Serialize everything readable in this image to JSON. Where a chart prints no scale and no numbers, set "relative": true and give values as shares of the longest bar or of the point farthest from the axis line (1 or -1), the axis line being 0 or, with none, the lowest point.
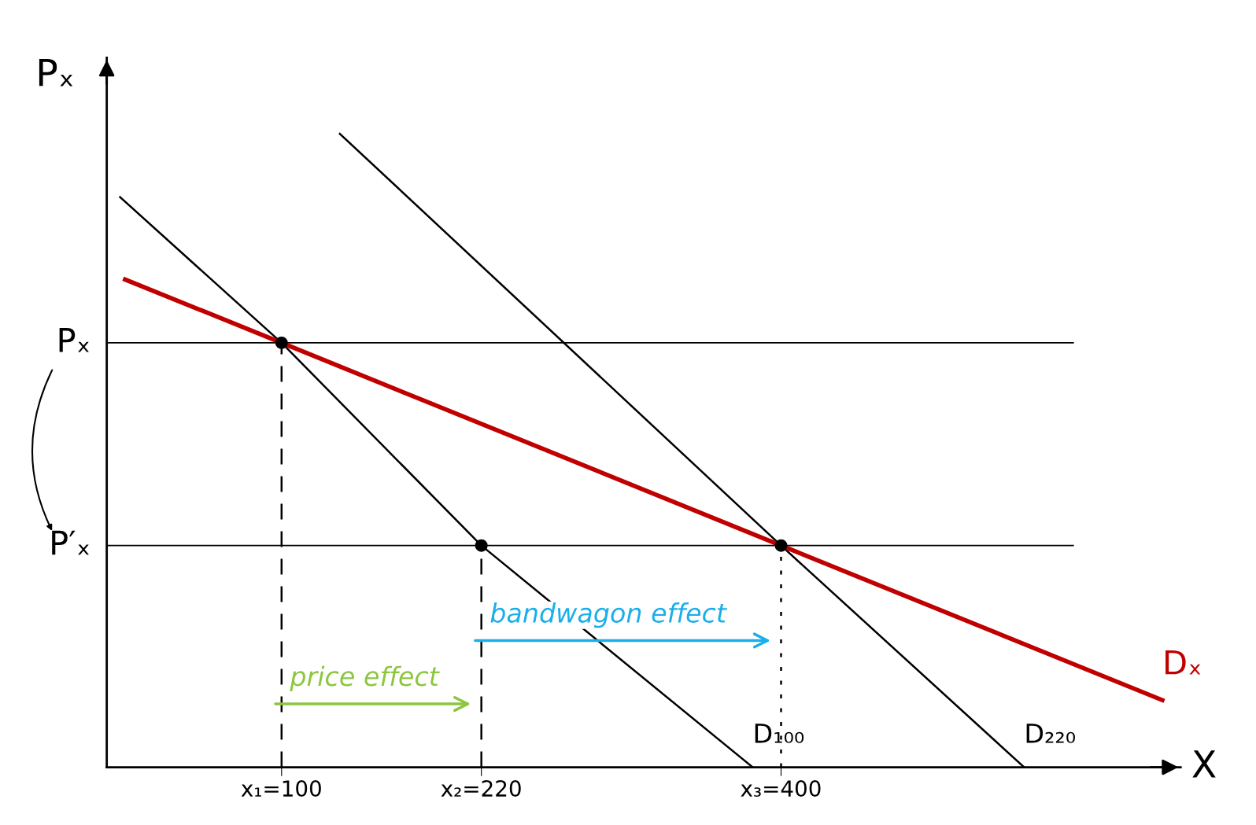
{
  "chart_data": {
    "type": "line",
    "relative": true,
    "xlabel": "X",
    "ylabel": "Pₓ",
    "xlim": [
      -5,
      640
    ],
    "xticks": [
      {
        "value": 100,
        "label": "x₁=100"
      },
      {
        "value": 220,
        "label": "x₂=220"
      },
      {
        "value": 400,
        "label": "x₃=400"
      }
    ],
    "tick_labels": "x",
    "grid": false,
    "legend": false,
    "series": [
      {
        "name": "D₁₀₀",
        "color": "#000000",
        "x": [
          3,
          100,
          220,
          383
        ],
        "values": [
          0.9,
          0.67,
          0.35,
          0
        ]
      },
      {
        "name": "D₂₂₀",
        "color": "#000000",
        "x": [
          135,
          400,
          546
        ],
        "values": [
          1.0,
          0.35,
          0
        ]
      },
      {
        "name": "Dₓ",
        "color": "#c00000",
        "x": [
          6,
          100,
          400,
          629
        ],
        "values": [
          0.77,
          0.67,
          0.35,
          0.106
        ]
      },
      {
        "color": "#000000",
        "line_style": "dashed",
        "x": [
          100,
          100
        ],
        "values": [
          0,
          0.67
        ]
      },
      {
        "color": "#000000",
        "line_style": "dashed",
        "x": [
          220,
          220
        ],
        "values": [
          0,
          0.35
        ]
      },
      {
        "color": "#000000",
        "line_style": "dotted",
        "x": [
          400,
          400
        ],
        "values": [
          0,
          0.35
        ]
      },
      {
        "type": "scatter",
        "color": "#000000",
        "marker": "circle",
        "x": [
          100,
          220,
          400
        ],
        "values": [
          0.67,
          0.35,
          0.35
        ]
      }
    ],
    "ref_lines": [
      {
        "axis": "y",
        "value": 0.67,
        "label": "Pₓ",
        "color": "#000000"
      },
      {
        "axis": "y",
        "value": 0.35,
        "label": "P′ₓ",
        "color": "#000000"
      }
    ],
    "annotations": [
      {
        "text": "price effect",
        "x": 100,
        "y": 0.1
      },
      {
        "text": "bandwagon effect",
        "x": 220,
        "y": 0.2
      }
    ]
  }
}
